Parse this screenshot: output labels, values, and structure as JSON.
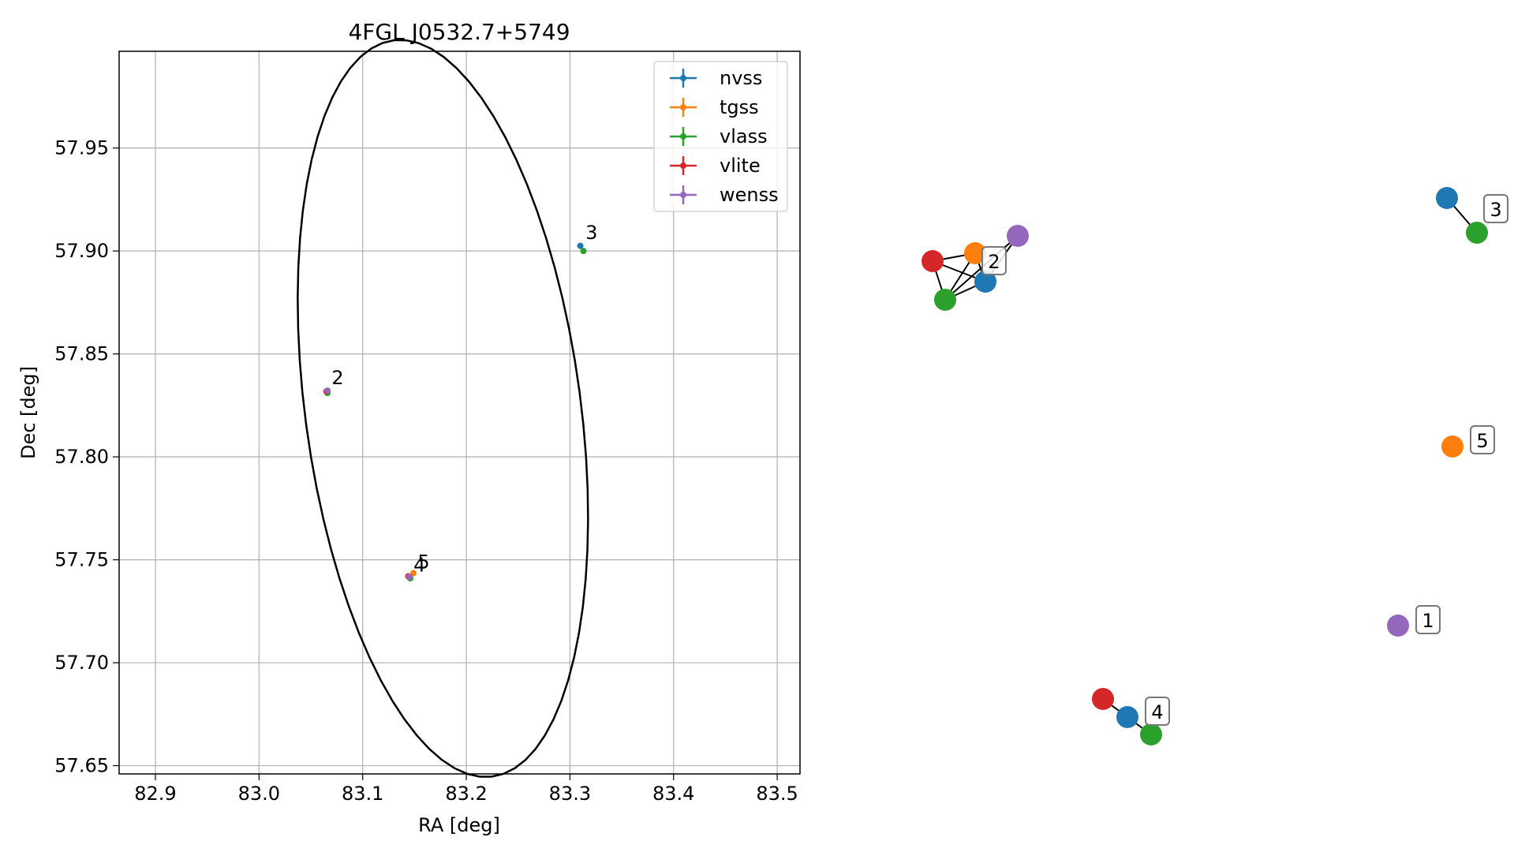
{
  "chart_data": [
    {
      "type": "scatter",
      "title": "4FGL J0532.7+5749",
      "xlabel": "RA [deg]",
      "ylabel": "Dec [deg]",
      "xlim": [
        82.865,
        83.522
      ],
      "ylim": [
        57.646,
        57.997
      ],
      "xticks": [
        82.9,
        83.0,
        83.1,
        83.2,
        83.3,
        83.4,
        83.5
      ],
      "xtick_labels": [
        "82.9",
        "83.0",
        "83.1",
        "83.2",
        "83.3",
        "83.4",
        "83.5"
      ],
      "yticks": [
        57.65,
        57.7,
        57.75,
        57.8,
        57.85,
        57.9,
        57.95
      ],
      "ytick_labels": [
        "57.65",
        "57.70",
        "57.75",
        "57.80",
        "57.85",
        "57.90",
        "57.95"
      ],
      "grid": true,
      "legend_placement": "top-right",
      "series": [
        {
          "name": "nvss",
          "color": "#1f77b4",
          "points": [
            {
              "x": 83.31,
              "y": 57.9025
            },
            {
              "x": 83.145,
              "y": 57.7415
            },
            {
              "x": 83.066,
              "y": 57.8315
            }
          ]
        },
        {
          "name": "tgss",
          "color": "#ff7f0e",
          "points": [
            {
              "x": 83.149,
              "y": 57.7435
            },
            {
              "x": 83.066,
              "y": 57.832
            }
          ]
        },
        {
          "name": "vlass",
          "color": "#2ca02c",
          "points": [
            {
              "x": 83.313,
              "y": 57.9
            },
            {
              "x": 83.146,
              "y": 57.741
            },
            {
              "x": 83.066,
              "y": 57.831
            }
          ]
        },
        {
          "name": "vlite",
          "color": "#d62728",
          "points": [
            {
              "x": 83.144,
              "y": 57.742
            },
            {
              "x": 83.065,
              "y": 57.8318
            }
          ]
        },
        {
          "name": "wenss",
          "color": "#9467bd",
          "points": [
            {
              "x": 83.145,
              "y": 57.7418
            },
            {
              "x": 83.066,
              "y": 57.8322
            }
          ]
        }
      ],
      "annotations": [
        {
          "text": "3",
          "x": 83.312,
          "y": 57.9035
        },
        {
          "text": "2",
          "x": 83.067,
          "y": 57.833
        },
        {
          "text": "4",
          "x": 83.146,
          "y": 57.742
        },
        {
          "text": "5",
          "x": 83.15,
          "y": 57.7435
        }
      ],
      "ellipse": {
        "center": {
          "x": 83.1774,
          "y": 57.8235
        },
        "semi_major_axis": 0.1272,
        "semi_minor_axis": 0.1884,
        "rotation_deg": 25.0,
        "color": "#000000"
      }
    },
    {
      "type": "network",
      "description_labels": [
        "1",
        "2",
        "3",
        "4",
        "5"
      ],
      "groups": [
        {
          "label": "2",
          "nodes": [
            {
              "id": "2-vlite",
              "color": "#d62728"
            },
            {
              "id": "2-tgss",
              "color": "#ff7f0e"
            },
            {
              "id": "2-wenss",
              "color": "#9467bd"
            },
            {
              "id": "2-nvss",
              "color": "#1f77b4"
            },
            {
              "id": "2-vlass",
              "color": "#2ca02c"
            }
          ],
          "edges": [
            [
              "2-vlite",
              "2-tgss"
            ],
            [
              "2-vlite",
              "2-nvss"
            ],
            [
              "2-vlite",
              "2-vlass"
            ],
            [
              "2-tgss",
              "2-nvss"
            ],
            [
              "2-tgss",
              "2-vlass"
            ],
            [
              "2-wenss",
              "2-nvss"
            ],
            [
              "2-wenss",
              "2-vlass"
            ],
            [
              "2-nvss",
              "2-vlass"
            ]
          ]
        },
        {
          "label": "3",
          "nodes": [
            {
              "id": "3-nvss",
              "color": "#1f77b4"
            },
            {
              "id": "3-vlass",
              "color": "#2ca02c"
            }
          ],
          "edges": [
            [
              "3-nvss",
              "3-vlass"
            ]
          ]
        },
        {
          "label": "5",
          "nodes": [
            {
              "id": "5-tgss",
              "color": "#ff7f0e"
            }
          ],
          "edges": []
        },
        {
          "label": "1",
          "nodes": [
            {
              "id": "1-wenss",
              "color": "#9467bd"
            }
          ],
          "edges": []
        },
        {
          "label": "4",
          "nodes": [
            {
              "id": "4-vlite",
              "color": "#d62728"
            },
            {
              "id": "4-nvss",
              "color": "#1f77b4"
            },
            {
              "id": "4-vlass",
              "color": "#2ca02c"
            }
          ],
          "edges": [
            [
              "4-vlite",
              "4-nvss"
            ],
            [
              "4-nvss",
              "4-vlass"
            ]
          ]
        }
      ]
    }
  ]
}
